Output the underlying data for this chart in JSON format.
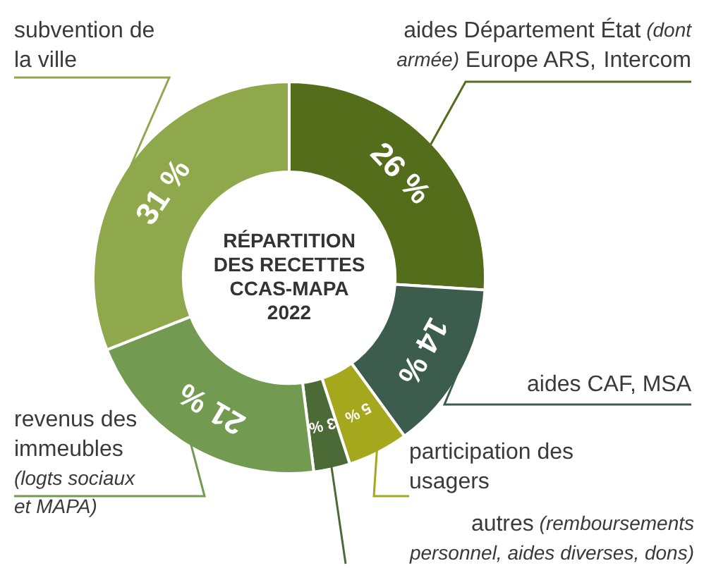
{
  "chart_data": {
    "type": "donut",
    "title": "RÉPARTITION DES RECETTES CCAS-MAPA 2022",
    "categories": [
      "aides Département État (dont armée) Europe ARS, Intercom",
      "aides CAF, MSA",
      "participation des usagers",
      "autres (remboursements personnel, aides diverses, dons)",
      "revenus des immeubles (logts sociaux et MAPA)",
      "subvention de la ville"
    ],
    "values": [
      26,
      14,
      5,
      3,
      21,
      31
    ],
    "value_labels": [
      "26 %",
      "14 %",
      "5 %",
      "3 %",
      "21 %",
      "31 %"
    ],
    "colors": [
      "#536d1b",
      "#3c5d4e",
      "#a5a81c",
      "#4b6a35",
      "#729a50",
      "#8fa84c"
    ],
    "legend": false
  }
}
